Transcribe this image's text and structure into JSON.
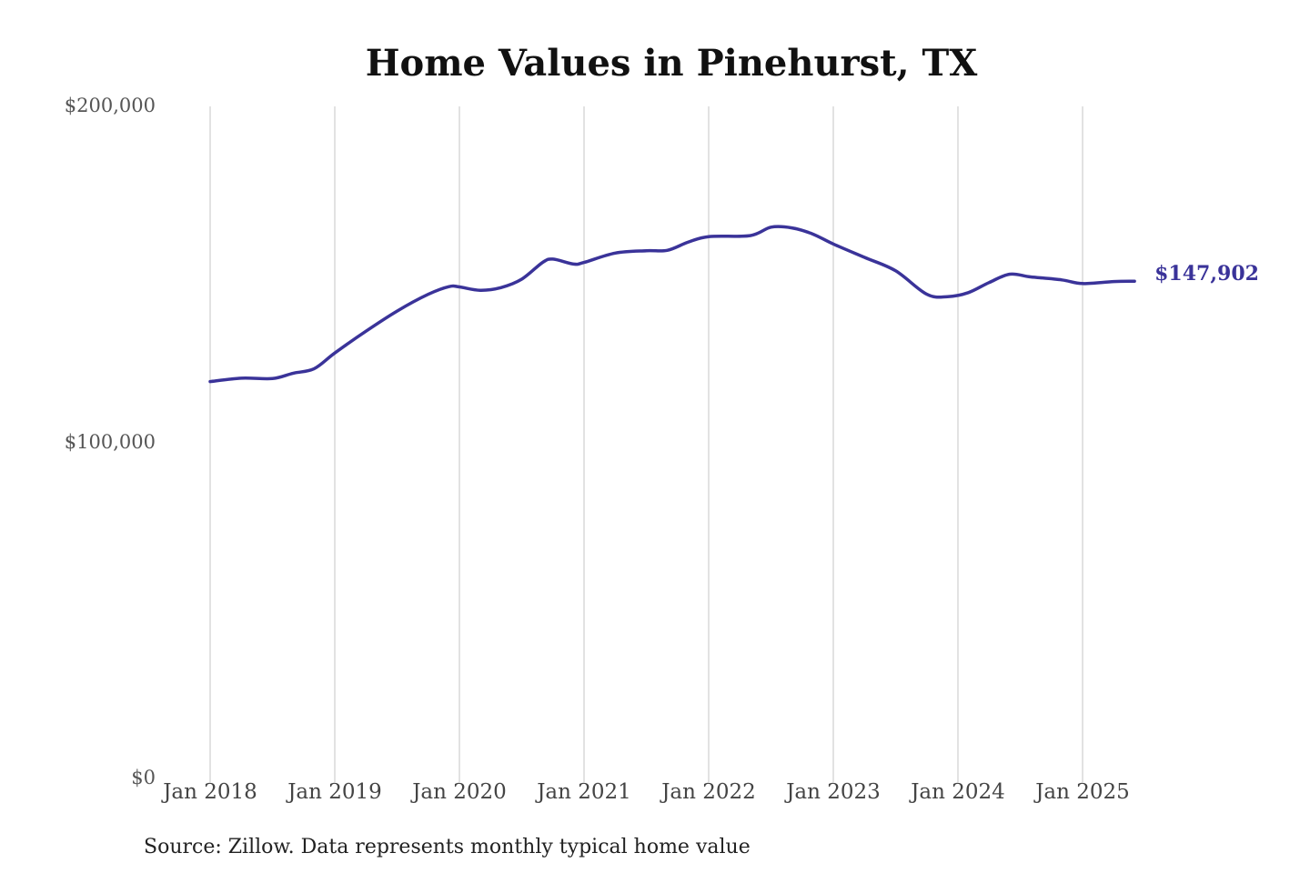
{
  "chart_data": {
    "type": "line",
    "title": "Home Values in Pinehurst, TX",
    "xlabel": "",
    "ylabel": "",
    "ylim": [
      0,
      200000
    ],
    "grid": "vertical",
    "legend": "none",
    "y_ticks": [
      {
        "value": 0,
        "label": "$0"
      },
      {
        "value": 100000,
        "label": "$100,000"
      },
      {
        "value": 200000,
        "label": "$200,000"
      }
    ],
    "x_ticks": [
      {
        "value": 2018.0,
        "label": "Jan 2018"
      },
      {
        "value": 2019.0,
        "label": "Jan 2019"
      },
      {
        "value": 2020.0,
        "label": "Jan 2020"
      },
      {
        "value": 2021.0,
        "label": "Jan 2021"
      },
      {
        "value": 2022.0,
        "label": "Jan 2022"
      },
      {
        "value": 2023.0,
        "label": "Jan 2023"
      },
      {
        "value": 2024.0,
        "label": "Jan 2024"
      },
      {
        "value": 2025.0,
        "label": "Jan 2025"
      }
    ],
    "xlim": [
      2018.0,
      2025.417
    ],
    "series": [
      {
        "color": "#3a3399",
        "end_label": "$147,902",
        "points": [
          {
            "x": 2018.0,
            "y": 118000
          },
          {
            "x": 2018.25,
            "y": 119000
          },
          {
            "x": 2018.5,
            "y": 118900
          },
          {
            "x": 2018.667,
            "y": 120500
          },
          {
            "x": 2018.833,
            "y": 121800
          },
          {
            "x": 2019.0,
            "y": 126500
          },
          {
            "x": 2019.25,
            "y": 133000
          },
          {
            "x": 2019.5,
            "y": 139000
          },
          {
            "x": 2019.75,
            "y": 144000
          },
          {
            "x": 2019.917,
            "y": 146300
          },
          {
            "x": 2020.0,
            "y": 146200
          },
          {
            "x": 2020.167,
            "y": 145200
          },
          {
            "x": 2020.333,
            "y": 146000
          },
          {
            "x": 2020.5,
            "y": 148500
          },
          {
            "x": 2020.667,
            "y": 153500
          },
          {
            "x": 2020.75,
            "y": 154500
          },
          {
            "x": 2020.917,
            "y": 153000
          },
          {
            "x": 2021.0,
            "y": 153500
          },
          {
            "x": 2021.25,
            "y": 156300
          },
          {
            "x": 2021.5,
            "y": 157000
          },
          {
            "x": 2021.667,
            "y": 157100
          },
          {
            "x": 2021.833,
            "y": 159500
          },
          {
            "x": 2022.0,
            "y": 161200
          },
          {
            "x": 2022.333,
            "y": 161500
          },
          {
            "x": 2022.5,
            "y": 164000
          },
          {
            "x": 2022.667,
            "y": 163800
          },
          {
            "x": 2022.833,
            "y": 162000
          },
          {
            "x": 2023.0,
            "y": 159000
          },
          {
            "x": 2023.25,
            "y": 155000
          },
          {
            "x": 2023.5,
            "y": 151000
          },
          {
            "x": 2023.75,
            "y": 144000
          },
          {
            "x": 2023.917,
            "y": 143300
          },
          {
            "x": 2024.083,
            "y": 144500
          },
          {
            "x": 2024.25,
            "y": 147500
          },
          {
            "x": 2024.417,
            "y": 150000
          },
          {
            "x": 2024.583,
            "y": 149200
          },
          {
            "x": 2024.833,
            "y": 148300
          },
          {
            "x": 2025.0,
            "y": 147200
          },
          {
            "x": 2025.25,
            "y": 147800
          },
          {
            "x": 2025.417,
            "y": 147902
          }
        ]
      }
    ]
  },
  "source_note": "Source: Zillow. Data represents monthly typical home value"
}
